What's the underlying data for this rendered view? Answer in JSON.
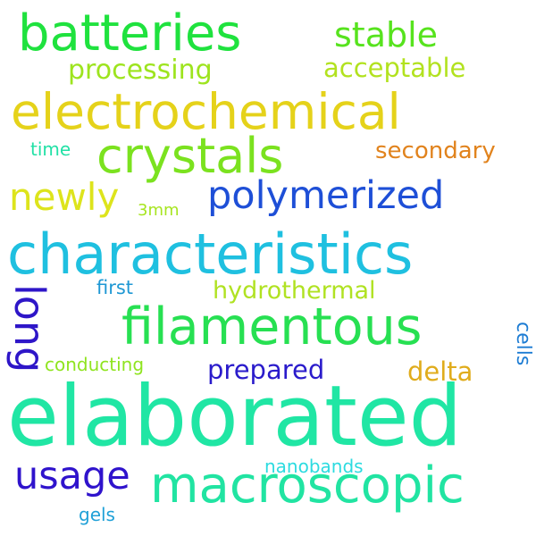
{
  "words": [
    {
      "text": "elaborated",
      "color": "#20e6a4"
    },
    {
      "text": "characteristics",
      "color": "#1fc0e0"
    },
    {
      "text": "electrochemical",
      "color": "#e5d21a"
    },
    {
      "text": "filamentous",
      "color": "#27e052"
    },
    {
      "text": "macroscopic",
      "color": "#21e4a2"
    },
    {
      "text": "batteries",
      "color": "#1fe23e"
    },
    {
      "text": "crystals",
      "color": "#7be21f"
    },
    {
      "text": "polymerized",
      "color": "#1e4fd7"
    },
    {
      "text": "newly",
      "color": "#dde41c"
    },
    {
      "text": "long",
      "color": "#2e16c8"
    },
    {
      "text": "usage",
      "color": "#2f13cc"
    },
    {
      "text": "stable",
      "color": "#57e31e"
    },
    {
      "text": "processing",
      "color": "#9de41e"
    },
    {
      "text": "acceptable",
      "color": "#b2e21f"
    },
    {
      "text": "hydrothermal",
      "color": "#b0e222"
    },
    {
      "text": "prepared",
      "color": "#2a1bcb"
    },
    {
      "text": "delta",
      "color": "#e0ac1c"
    },
    {
      "text": "secondary",
      "color": "#e1831d"
    },
    {
      "text": "conducting",
      "color": "#8fe41f"
    },
    {
      "text": "first",
      "color": "#1f98d4"
    },
    {
      "text": "cells",
      "color": "#1d7cd3"
    },
    {
      "text": "nanobands",
      "color": "#2cdbe0"
    },
    {
      "text": "time",
      "color": "#22e1a6"
    },
    {
      "text": "3mm",
      "color": "#a6e51f"
    },
    {
      "text": "gels",
      "color": "#1fa0d7"
    }
  ]
}
